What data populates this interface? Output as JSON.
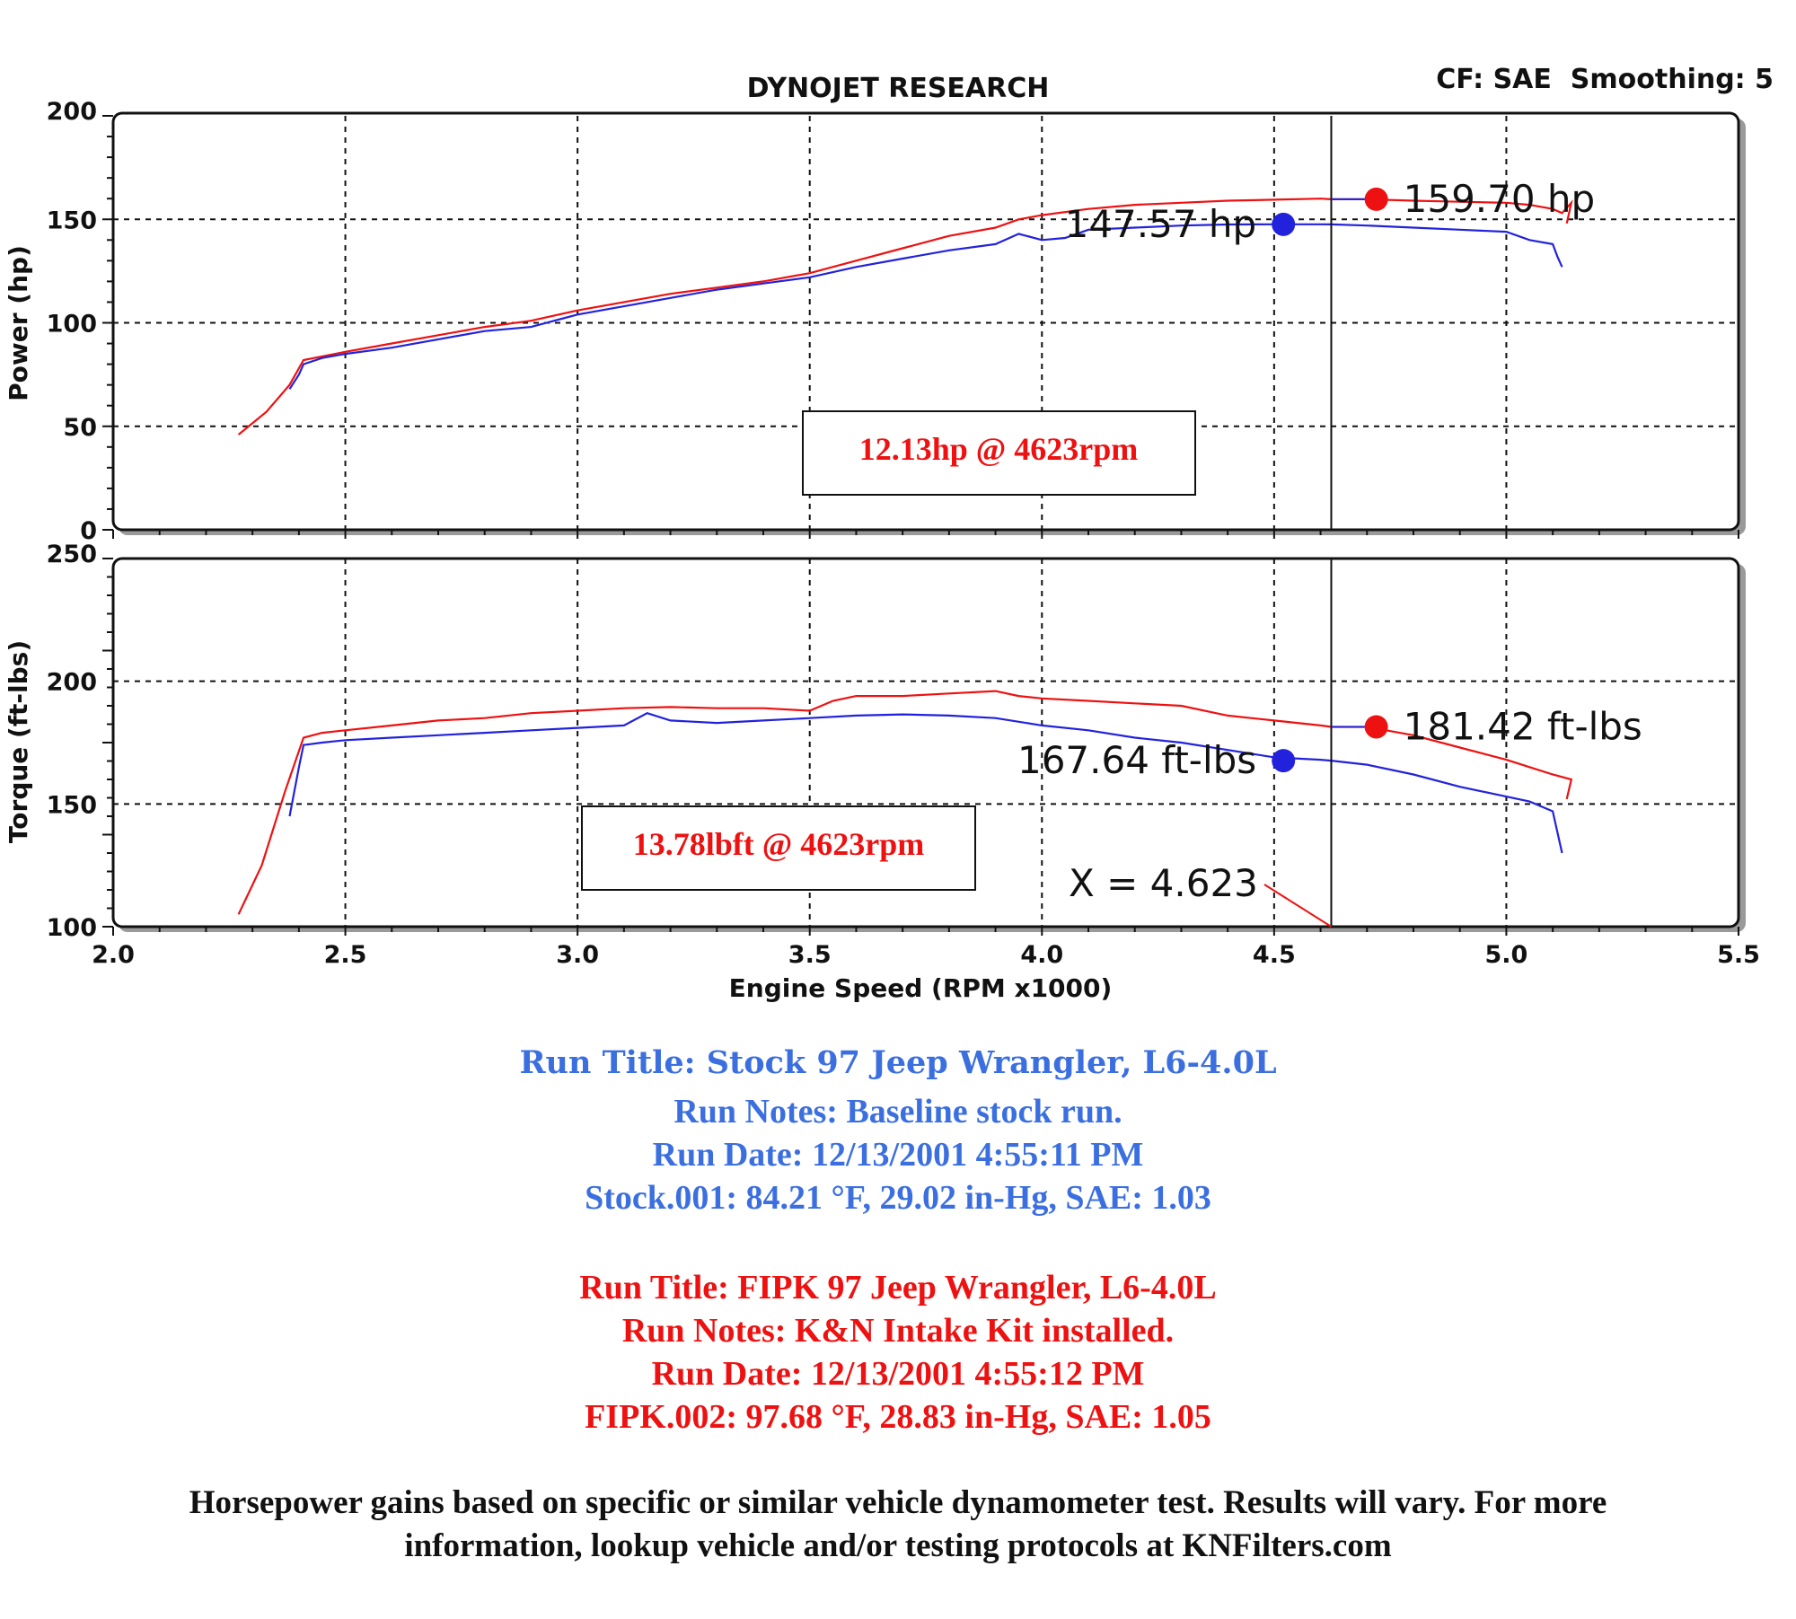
{
  "header": {
    "title": "DYNOJET RESEARCH",
    "settings": "CF: SAE  Smoothing: 5"
  },
  "chart_data": [
    {
      "type": "line",
      "title": "DYNOJET RESEARCH",
      "ylabel": "Power (hp)",
      "xlabel": "Engine Speed (RPM x1000)",
      "xlim": [
        2.0,
        5.5
      ],
      "ylim": [
        0,
        200
      ],
      "xticks": [
        "2.0",
        "2.5",
        "3.0",
        "3.5",
        "4.0",
        "4.5",
        "5.0",
        "5.5"
      ],
      "yticks": [
        "0",
        "50",
        "100",
        "150",
        "200"
      ],
      "grid": true,
      "series": [
        {
          "color": "#ee1111",
          "x": [
            2.27,
            2.33,
            2.38,
            2.41,
            2.5,
            2.6,
            2.7,
            2.8,
            2.9,
            3.0,
            3.1,
            3.2,
            3.3,
            3.4,
            3.5,
            3.6,
            3.7,
            3.8,
            3.9,
            3.95,
            4.0,
            4.1,
            4.2,
            4.3,
            4.4,
            4.5,
            4.6,
            4.623,
            4.7,
            4.8,
            4.9,
            5.0,
            5.05,
            5.1,
            5.12,
            5.14,
            5.13
          ],
          "y": [
            46,
            57,
            70,
            82,
            86,
            90,
            94,
            98,
            101,
            106,
            110,
            114,
            117,
            120,
            124,
            130,
            136,
            142,
            146,
            150,
            152,
            155,
            157,
            158,
            159,
            159.5,
            160,
            159.7,
            159.7,
            159,
            158.5,
            158,
            157,
            155,
            153,
            158,
            148
          ]
        },
        {
          "color": "#2222dd",
          "x": [
            2.38,
            2.4,
            2.41,
            2.45,
            2.5,
            2.6,
            2.7,
            2.8,
            2.9,
            3.0,
            3.1,
            3.2,
            3.3,
            3.4,
            3.5,
            3.6,
            3.7,
            3.8,
            3.9,
            3.95,
            4.0,
            4.05,
            4.1,
            4.2,
            4.3,
            4.4,
            4.5,
            4.6,
            4.623,
            4.7,
            4.8,
            4.9,
            5.0,
            5.05,
            5.1,
            5.11,
            5.12
          ],
          "y": [
            68,
            75,
            80,
            83,
            85,
            88,
            92,
            96,
            98,
            104,
            108,
            112,
            116,
            119,
            122,
            127,
            131,
            135,
            138,
            143,
            140,
            141,
            145,
            146,
            147,
            147.5,
            147.6,
            147.6,
            147.57,
            147,
            146,
            145,
            144,
            140,
            138,
            132,
            127
          ]
        }
      ],
      "annotations": {
        "red_max_label": "159.70 hp",
        "blue_max_label": "147.57 hp",
        "red_max_value": 159.7,
        "blue_max_value": 147.57,
        "red_max_x": 4.72,
        "blue_max_x": 4.52,
        "cursor_x": 4.623
      }
    },
    {
      "type": "line",
      "ylabel": "Torque (ft-lbs)",
      "xlabel": "Engine Speed (RPM x1000)",
      "xlim": [
        2.0,
        5.5
      ],
      "ylim": [
        100,
        250
      ],
      "xticks": [
        "2.0",
        "2.5",
        "3.0",
        "3.5",
        "4.0",
        "4.5",
        "5.0",
        "5.5"
      ],
      "yticks": [
        "100",
        "150",
        "200",
        "250"
      ],
      "grid": true,
      "series": [
        {
          "color": "#ee1111",
          "x": [
            2.27,
            2.32,
            2.37,
            2.41,
            2.45,
            2.5,
            2.6,
            2.7,
            2.8,
            2.9,
            3.0,
            3.1,
            3.2,
            3.3,
            3.4,
            3.5,
            3.55,
            3.6,
            3.7,
            3.8,
            3.9,
            3.95,
            4.0,
            4.1,
            4.2,
            4.3,
            4.4,
            4.5,
            4.6,
            4.623,
            4.7,
            4.8,
            4.9,
            5.0,
            5.05,
            5.1,
            5.14,
            5.13
          ],
          "y": [
            105,
            125,
            155,
            177,
            179,
            180,
            182,
            184,
            185,
            187,
            188,
            189,
            189.5,
            189,
            189,
            188,
            192,
            194,
            194,
            195,
            196,
            194,
            193,
            192,
            191,
            190,
            186,
            184,
            182,
            181.4,
            181.4,
            178,
            173,
            168,
            165,
            162,
            160,
            152
          ]
        },
        {
          "color": "#2222dd",
          "x": [
            2.38,
            2.4,
            2.41,
            2.45,
            2.5,
            2.6,
            2.7,
            2.8,
            2.9,
            3.0,
            3.1,
            3.15,
            3.2,
            3.3,
            3.4,
            3.5,
            3.6,
            3.7,
            3.8,
            3.9,
            4.0,
            4.1,
            4.2,
            4.3,
            4.4,
            4.5,
            4.6,
            4.623,
            4.7,
            4.8,
            4.9,
            5.0,
            5.05,
            5.1,
            5.12
          ],
          "y": [
            145,
            165,
            174,
            175,
            176,
            177,
            178,
            179,
            180,
            181,
            182,
            187,
            184,
            183,
            184,
            185,
            186,
            186.5,
            186,
            185,
            182,
            180,
            177,
            175,
            172,
            169,
            168,
            167.64,
            166,
            162,
            157,
            153,
            151,
            147,
            130
          ]
        }
      ],
      "annotations": {
        "red_max_label": "181.42 ft-lbs",
        "blue_max_label": "167.64 ft-lbs",
        "red_max_value": 181.42,
        "blue_max_value": 167.64,
        "red_max_x": 4.72,
        "blue_max_x": 4.52,
        "cursor_x": 4.623,
        "cursor_label": "X = 4.623"
      }
    }
  ],
  "boxes": {
    "hp_gain": "12.13hp @ 4623rpm",
    "tq_gain": "13.78lbft @ 4623rpm"
  },
  "colors": {
    "stock": "#2222dd",
    "fipk": "#ee1111",
    "stock_text": "#3b6fe0",
    "fipk_text": "#ee1111"
  },
  "stock_run": {
    "title": "Run Title: Stock 97 Jeep Wrangler, L6-4.0L",
    "notes": "Run Notes: Baseline stock run.",
    "date": "Run Date: 12/13/2001 4:55:11 PM",
    "conditions": "Stock.001: 84.21 °F, 29.02 in-Hg, SAE: 1.03"
  },
  "fipk_run": {
    "title": "Run Title: FIPK 97 Jeep Wrangler, L6-4.0L",
    "notes": "Run Notes: K&N Intake Kit installed.",
    "date": "Run Date: 12/13/2001 4:55:12 PM",
    "conditions": "FIPK.002: 97.68 °F, 28.83 in-Hg, SAE: 1.05"
  },
  "disclaimer": {
    "line1": "Horsepower gains based on specific or similar vehicle dynamometer test. Results will vary. For more",
    "line2": "information, lookup vehicle and/or testing protocols at KNFilters.com"
  }
}
